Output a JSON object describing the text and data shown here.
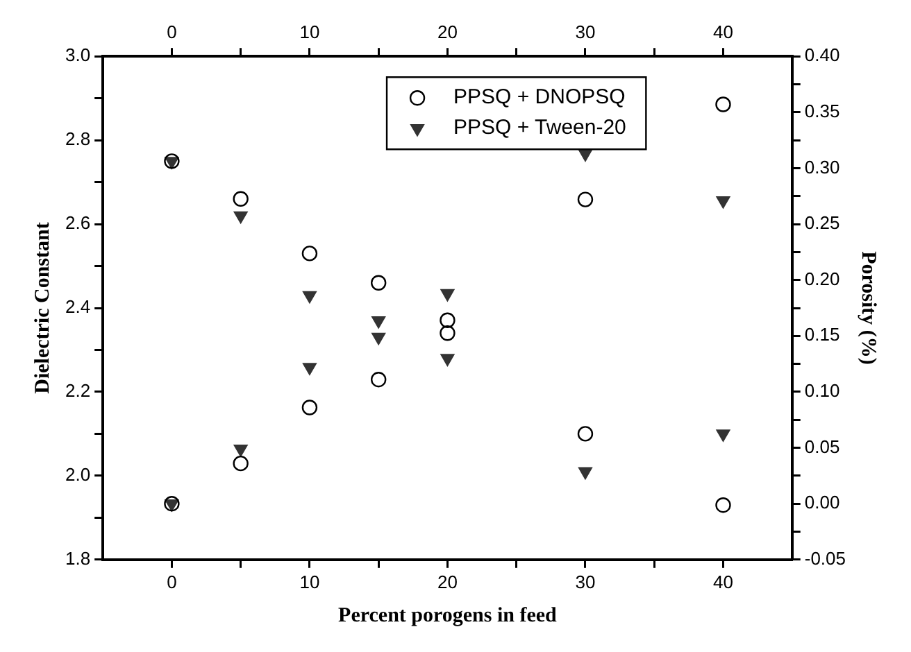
{
  "chart_data": {
    "type": "scatter",
    "xlabel": "Percent porogens in feed",
    "ylabel": "Dielectric Constant",
    "y2label": "Porosity (%)",
    "xlim": [
      -5,
      45
    ],
    "xticks": [
      0,
      {
        "value": 5,
        "label": null
      },
      10,
      {
        "value": 15,
        "label": null
      },
      20,
      {
        "value": 25,
        "label": null
      },
      30,
      {
        "value": 35,
        "label": null
      },
      40
    ],
    "x2lim": [
      -5,
      45
    ],
    "x2ticks": [
      0,
      {
        "value": 5,
        "label": null
      },
      10,
      {
        "value": 15,
        "label": null
      },
      20,
      {
        "value": 25,
        "label": null
      },
      30,
      {
        "value": 35,
        "label": null
      },
      40
    ],
    "ylim": [
      1.8,
      3.0
    ],
    "yticks": [
      1.8,
      {
        "value": 1.9,
        "label": null
      },
      {
        "value": 2.0,
        "label": "2.0"
      },
      {
        "value": 2.1,
        "label": null
      },
      2.2,
      {
        "value": 2.3,
        "label": null
      },
      2.4,
      {
        "value": 2.5,
        "label": null
      },
      2.6,
      {
        "value": 2.7,
        "label": null
      },
      2.8,
      {
        "value": 2.9,
        "label": null
      },
      {
        "value": 3.0,
        "label": "3.0"
      }
    ],
    "y2lim": [
      -0.05,
      0.4
    ],
    "y2ticks": [
      {
        "value": -0.05,
        "label": "-0.05"
      },
      {
        "value": -0.025,
        "label": null
      },
      {
        "value": 0,
        "label": "0.00"
      },
      {
        "value": 0.025,
        "label": null
      },
      0.05,
      {
        "value": 0.075,
        "label": null
      },
      {
        "value": 0.1,
        "label": "0.10"
      },
      {
        "value": 0.125,
        "label": null
      },
      0.15,
      {
        "value": 0.175,
        "label": null
      },
      {
        "value": 0.2,
        "label": "0.20"
      },
      {
        "value": 0.225,
        "label": null
      },
      0.25,
      {
        "value": 0.275,
        "label": null
      },
      {
        "value": 0.3,
        "label": "0.30"
      },
      {
        "value": 0.325,
        "label": null
      },
      0.35,
      {
        "value": 0.375,
        "label": null
      },
      {
        "value": 0.4,
        "label": "0.40"
      }
    ],
    "grid": false,
    "legend": "top",
    "series": [
      {
        "name": "PPSQ + DNOPSQ",
        "color": "#000000",
        "marker": "circle",
        "axis": "y",
        "x": [
          0,
          5,
          10,
          15,
          20,
          30,
          40
        ],
        "values": [
          2.75,
          2.66,
          2.53,
          2.46,
          2.34,
          2.1,
          1.93
        ]
      },
      {
        "name": "PPSQ + Tween-20",
        "color": "#333333",
        "marker": "triangle",
        "axis": "y",
        "x": [
          0,
          5,
          10,
          15,
          20,
          30,
          40
        ],
        "values": [
          2.75,
          2.62,
          2.43,
          2.37,
          2.28,
          2.01,
          2.1
        ]
      },
      {
        "color": "#000000",
        "marker": "circle",
        "axis": "y2",
        "x": [
          0,
          5,
          10,
          15,
          20,
          30,
          40
        ],
        "values": [
          0.0,
          0.036,
          0.086,
          0.111,
          0.164,
          0.272,
          0.357
        ]
      },
      {
        "color": "#333333",
        "marker": "triangle",
        "axis": "y2",
        "x": [
          0,
          5,
          10,
          15,
          20,
          30,
          40
        ],
        "values": [
          0.0,
          0.049,
          0.122,
          0.149,
          0.188,
          0.313,
          0.271
        ]
      }
    ]
  }
}
